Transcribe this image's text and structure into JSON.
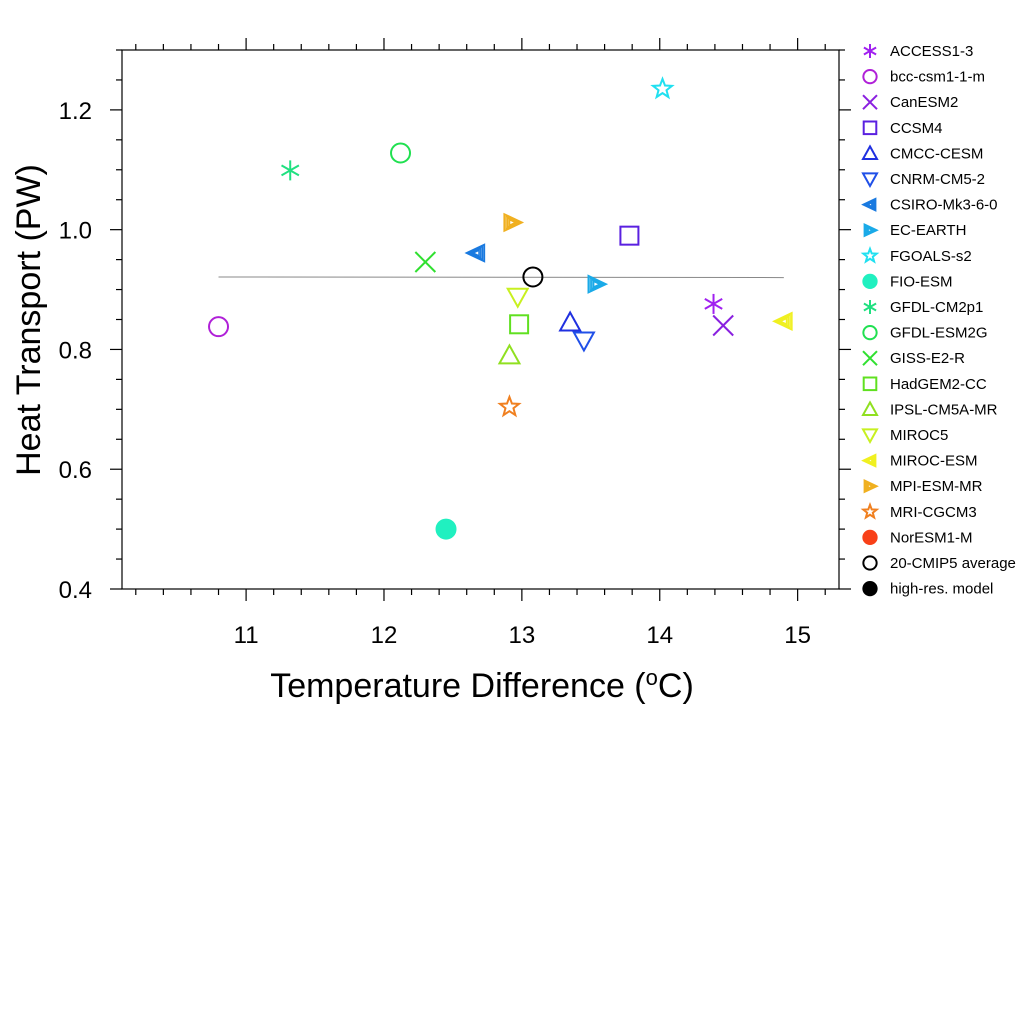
{
  "chart_data": {
    "type": "scatter",
    "title": "",
    "xlabel": "Temperature Difference (",
    "xlabel_sup": "o",
    "xlabel_end": "C)",
    "ylabel": "Heat Transport (PW)",
    "xlim": [
      10.1,
      15.3
    ],
    "ylim": [
      0.4,
      1.3
    ],
    "x_ticks": [
      11,
      12,
      13,
      14,
      15
    ],
    "y_ticks": [
      0.4,
      0.6,
      0.8,
      1.0,
      1.2
    ],
    "x_tick_labels": [
      "11",
      "12",
      "13",
      "14",
      "15"
    ],
    "y_tick_labels": [
      "0.4",
      "0.6",
      "0.8",
      "1.0",
      "1.2"
    ],
    "grid": false,
    "legend_placement": "right",
    "reference_line": {
      "x": [
        10.8,
        14.9
      ],
      "y": [
        0.921,
        0.92
      ],
      "color": "#888888"
    },
    "series": [
      {
        "name": "ACCESS1-3",
        "marker": "asterisk",
        "color": "#a020f0",
        "x": 14.39,
        "y": 0.876
      },
      {
        "name": "bcc-csm1-1-m",
        "marker": "circle",
        "color": "#b020d8",
        "x": 10.8,
        "y": 0.838
      },
      {
        "name": "CanESM2",
        "marker": "x",
        "color": "#8a20e0",
        "x": 14.46,
        "y": 0.84
      },
      {
        "name": "CCSM4",
        "marker": "square",
        "color": "#5a20e0",
        "x": 13.78,
        "y": 0.99
      },
      {
        "name": "CMCC-CESM",
        "marker": "triangle-up",
        "color": "#2030e0",
        "x": 13.35,
        "y": 0.845
      },
      {
        "name": "CNRM-CM5-2",
        "marker": "triangle-down",
        "color": "#2050e8",
        "x": 13.45,
        "y": 0.815
      },
      {
        "name": "CSIRO-Mk3-6-0",
        "marker": "triangle-left",
        "color": "#1a7ae0",
        "x": 12.67,
        "y": 0.961
      },
      {
        "name": "EC-EARTH",
        "marker": "triangle-right",
        "color": "#1aaae8",
        "x": 13.54,
        "y": 0.909
      },
      {
        "name": "FGOALS-s2",
        "marker": "star",
        "color": "#20e0f0",
        "x": 14.02,
        "y": 1.235
      },
      {
        "name": "FIO-ESM",
        "marker": "filled-circle",
        "color": "#20f0c0",
        "x": 12.45,
        "y": 0.5
      },
      {
        "name": "GFDL-CM2p1",
        "marker": "asterisk",
        "color": "#20e080",
        "x": 11.32,
        "y": 1.099
      },
      {
        "name": "GFDL-ESM2G",
        "marker": "circle",
        "color": "#20e050",
        "x": 12.12,
        "y": 1.128
      },
      {
        "name": "GISS-E2-R",
        "marker": "x",
        "color": "#30e030",
        "x": 12.3,
        "y": 0.946
      },
      {
        "name": "HadGEM2-CC",
        "marker": "square",
        "color": "#60e020",
        "x": 12.98,
        "y": 0.842
      },
      {
        "name": "IPSL-CM5A-MR",
        "marker": "triangle-up",
        "color": "#90e020",
        "x": 12.91,
        "y": 0.79
      },
      {
        "name": "MIROC5",
        "marker": "triangle-down",
        "color": "#c8f020",
        "x": 12.97,
        "y": 0.888
      },
      {
        "name": "MIROC-ESM",
        "marker": "triangle-left",
        "color": "#f0f020",
        "x": 14.9,
        "y": 0.847
      },
      {
        "name": "MPI-ESM-MR",
        "marker": "triangle-right",
        "color": "#f0b020",
        "x": 12.93,
        "y": 1.012
      },
      {
        "name": "MRI-CGCM3",
        "marker": "star",
        "color": "#f08020",
        "x": 12.91,
        "y": 0.704
      },
      {
        "name": "NorESM1-M",
        "marker": "filled-circle",
        "color": "#f84018",
        "x": null,
        "y": null
      },
      {
        "name": "20-CMIP5 average",
        "marker": "circle",
        "color": "#000000",
        "x": 13.08,
        "y": 0.921
      },
      {
        "name": "high-res. model",
        "marker": "filled-circle",
        "color": "#000000",
        "x": null,
        "y": null
      }
    ]
  }
}
